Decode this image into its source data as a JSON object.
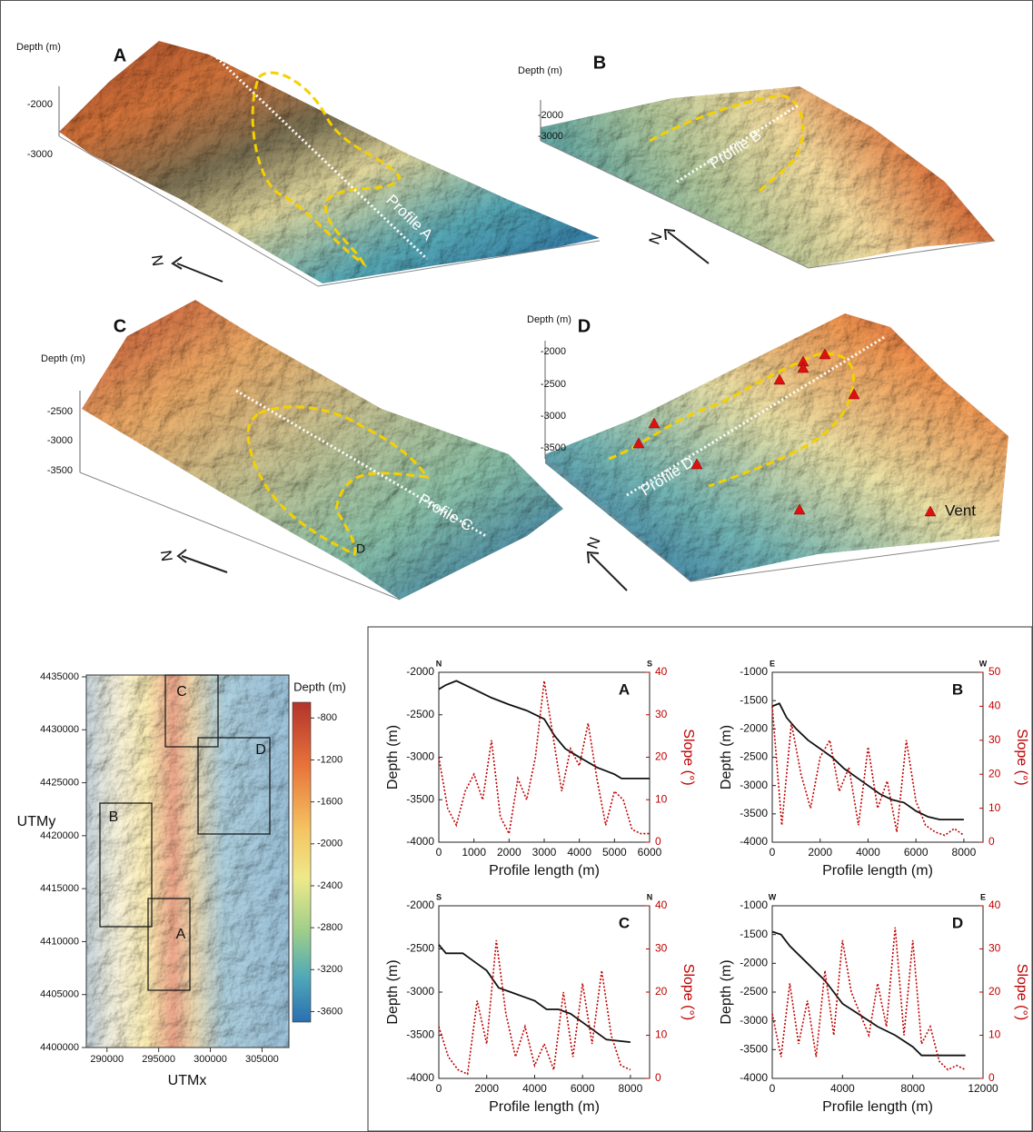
{
  "terrain_panels": [
    {
      "letter": "A",
      "depth_label": "Depth  (m)",
      "depth_ticks": [
        -2000,
        -3000
      ],
      "profile": "Profile A",
      "north": "N"
    },
    {
      "letter": "B",
      "depth_label": "Depth  (m)",
      "depth_ticks": [
        -2000,
        -3000
      ],
      "profile": "Profile B",
      "north": "N"
    },
    {
      "letter": "C",
      "depth_label": "Depth  (m)",
      "depth_ticks": [
        -2500,
        -3000,
        -3500
      ],
      "profile": "Profile C",
      "north": "N",
      "end_label": "D"
    },
    {
      "letter": "D",
      "depth_label": "Depth  (m)",
      "depth_ticks": [
        -2000,
        -2500,
        -3000,
        -3500
      ],
      "profile": "Profile D",
      "north": "N",
      "legend": "Vent"
    }
  ],
  "map": {
    "xlabel": "UTMx",
    "ylabel": "UTMy",
    "xlim": [
      288000,
      307600
    ],
    "ylim": [
      4400000,
      4435000
    ],
    "xticks": [
      290000,
      295000,
      300000,
      305000
    ],
    "yticks": [
      4400000,
      4405000,
      4410000,
      4415000,
      4420000,
      4425000,
      4430000,
      4435000
    ],
    "boxes": [
      "C",
      "D",
      "B",
      "A"
    ],
    "colorbar": {
      "label": "Depth  (m)",
      "lim": [
        -3700,
        -650
      ],
      "ticks": [
        -800,
        -1200,
        -1600,
        -2000,
        -2400,
        -2800,
        -3200,
        -3600
      ]
    }
  },
  "chart_data": [
    {
      "type": "line",
      "title": "A",
      "corner_labels": [
        "N",
        "S"
      ],
      "xlabel": "Profile length (m)",
      "ylabel": "Depth (m)",
      "y2label": "Slope (°)",
      "xlim": [
        0,
        6000
      ],
      "xticks": [
        0,
        1000,
        2000,
        3000,
        4000,
        5000,
        6000
      ],
      "ylim": [
        -4000,
        -2000
      ],
      "yticks": [
        -2000,
        -2500,
        -3000,
        -3500,
        -4000
      ],
      "y2lim": [
        0,
        40
      ],
      "y2ticks": [
        0,
        10,
        20,
        30,
        40
      ],
      "series": [
        {
          "color": "#111111",
          "x": [
            0,
            200,
            500,
            1000,
            1500,
            2000,
            2500,
            3000,
            3300,
            3600,
            4000,
            4500,
            5000,
            5200,
            6000
          ],
          "values": [
            -2200,
            -2150,
            -2100,
            -2200,
            -2300,
            -2380,
            -2450,
            -2550,
            -2750,
            -2900,
            -3000,
            -3120,
            -3200,
            -3250,
            -3250
          ]
        },
        {
          "color": "#c00000",
          "axis": "y2",
          "x": [
            0,
            250,
            500,
            750,
            1000,
            1250,
            1500,
            1750,
            2000,
            2250,
            2500,
            2750,
            3000,
            3250,
            3500,
            3750,
            4000,
            4250,
            4500,
            4750,
            5000,
            5250,
            5500,
            5750,
            6000
          ],
          "values": [
            20,
            8,
            4,
            12,
            16,
            10,
            24,
            6,
            2,
            15,
            10,
            20,
            38,
            25,
            12,
            22,
            18,
            28,
            15,
            4,
            12,
            10,
            3,
            2,
            2
          ]
        }
      ]
    },
    {
      "type": "line",
      "title": "B",
      "corner_labels": [
        "E",
        "W"
      ],
      "xlabel": "Profile length (m)",
      "ylabel": "Depth (m)",
      "y2label": "Slope (°)",
      "xlim": [
        0,
        8800
      ],
      "xticks": [
        0,
        2000,
        4000,
        6000,
        8000
      ],
      "ylim": [
        -4000,
        -1000
      ],
      "yticks": [
        -1000,
        -1500,
        -2000,
        -2500,
        -3000,
        -3500,
        -4000
      ],
      "y2lim": [
        0,
        50
      ],
      "y2ticks": [
        0,
        10,
        20,
        30,
        40,
        50
      ],
      "series": [
        {
          "color": "#111111",
          "x": [
            0,
            300,
            600,
            1000,
            1500,
            2000,
            2500,
            3000,
            3500,
            4000,
            4500,
            5000,
            5500,
            6000,
            6500,
            7000,
            8000
          ],
          "values": [
            -1600,
            -1550,
            -1800,
            -2000,
            -2200,
            -2350,
            -2500,
            -2700,
            -2850,
            -3000,
            -3150,
            -3250,
            -3300,
            -3450,
            -3550,
            -3600,
            -3600
          ]
        },
        {
          "color": "#c00000",
          "axis": "y2",
          "x": [
            0,
            400,
            800,
            1200,
            1600,
            2000,
            2400,
            2800,
            3200,
            3600,
            4000,
            4400,
            4800,
            5200,
            5600,
            6000,
            6400,
            6800,
            7200,
            7600,
            8000
          ],
          "values": [
            40,
            5,
            35,
            20,
            10,
            25,
            30,
            15,
            22,
            5,
            28,
            10,
            18,
            3,
            30,
            12,
            5,
            3,
            2,
            4,
            2
          ]
        }
      ]
    },
    {
      "type": "line",
      "title": "C",
      "corner_labels": [
        "S",
        "N"
      ],
      "xlabel": "Profile length (m)",
      "ylabel": "Depth (m)",
      "y2label": "Slope (°)",
      "xlim": [
        0,
        8800
      ],
      "xticks": [
        0,
        2000,
        4000,
        6000,
        8000
      ],
      "ylim": [
        -4000,
        -2000
      ],
      "yticks": [
        -2000,
        -2500,
        -3000,
        -3500,
        -4000
      ],
      "y2lim": [
        0,
        40
      ],
      "y2ticks": [
        0,
        10,
        20,
        30,
        40
      ],
      "series": [
        {
          "color": "#111111",
          "x": [
            0,
            300,
            1000,
            1500,
            2000,
            2500,
            3000,
            3500,
            4000,
            4500,
            5000,
            5500,
            6000,
            6500,
            7000,
            8000
          ],
          "values": [
            -2450,
            -2550,
            -2550,
            -2650,
            -2750,
            -2950,
            -3000,
            -3050,
            -3100,
            -3200,
            -3200,
            -3250,
            -3350,
            -3450,
            -3550,
            -3580
          ]
        },
        {
          "color": "#c00000",
          "axis": "y2",
          "x": [
            0,
            400,
            800,
            1200,
            1600,
            2000,
            2400,
            2800,
            3200,
            3600,
            4000,
            4400,
            4800,
            5200,
            5600,
            6000,
            6400,
            6800,
            7200,
            7600,
            8000
          ],
          "values": [
            12,
            5,
            2,
            1,
            18,
            8,
            32,
            15,
            5,
            12,
            3,
            8,
            2,
            20,
            5,
            22,
            8,
            25,
            10,
            3,
            2
          ]
        }
      ]
    },
    {
      "type": "line",
      "title": "D",
      "corner_labels": [
        "W",
        "E"
      ],
      "xlabel": "Profile length (m)",
      "ylabel": "Depth (m)",
      "y2label": "Slope (°)",
      "xlim": [
        0,
        12000
      ],
      "xticks": [
        0,
        4000,
        8000,
        12000
      ],
      "ylim": [
        -4000,
        -1000
      ],
      "yticks": [
        -1000,
        -1500,
        -2000,
        -2500,
        -3000,
        -3500,
        -4000
      ],
      "y2lim": [
        0,
        40
      ],
      "y2ticks": [
        0,
        10,
        20,
        30,
        40
      ],
      "series": [
        {
          "color": "#111111",
          "x": [
            0,
            500,
            1000,
            2000,
            3000,
            3500,
            4000,
            5000,
            6000,
            7000,
            8000,
            8500,
            11000
          ],
          "values": [
            -1450,
            -1500,
            -1700,
            -2000,
            -2300,
            -2500,
            -2700,
            -2900,
            -3100,
            -3250,
            -3450,
            -3600,
            -3600
          ]
        },
        {
          "color": "#c00000",
          "axis": "y2",
          "x": [
            0,
            500,
            1000,
            1500,
            2000,
            2500,
            3000,
            3500,
            4000,
            4500,
            5000,
            5500,
            6000,
            6500,
            7000,
            7500,
            8000,
            8500,
            9000,
            9500,
            10000,
            10500,
            11000
          ],
          "values": [
            15,
            5,
            22,
            8,
            18,
            5,
            25,
            10,
            32,
            20,
            15,
            10,
            22,
            12,
            35,
            10,
            32,
            8,
            12,
            4,
            2,
            3,
            2
          ]
        }
      ]
    }
  ]
}
